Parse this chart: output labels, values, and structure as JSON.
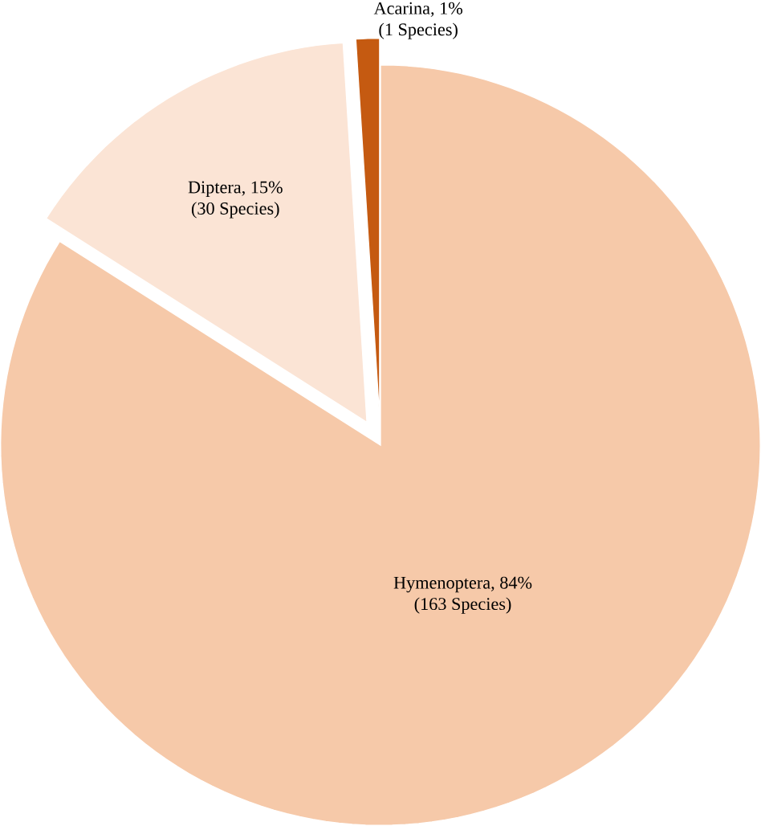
{
  "chart_data": {
    "type": "pie",
    "categories": [
      "Hymenoptera, 84%",
      "Diptera, 15%",
      "Acarina, 1%"
    ],
    "values": [
      84,
      15,
      1
    ],
    "colors": [
      "#f6c9a9",
      "#fbe4d5",
      "#c55a11"
    ],
    "annotations": [
      "(163 Species)",
      "(30 Species)",
      "(1 Species)"
    ]
  }
}
